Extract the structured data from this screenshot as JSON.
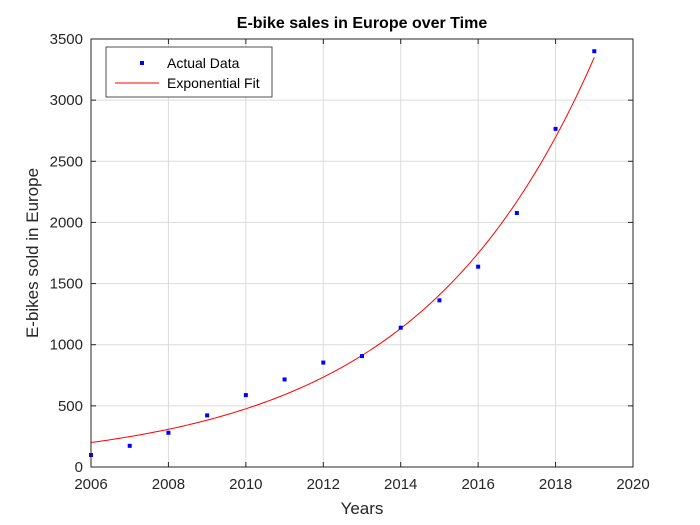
{
  "chart_data": {
    "type": "scatter",
    "title": "E-bike sales in Europe over Time",
    "xlabel": "Years",
    "ylabel": "E-bikes sold in Europe",
    "xlim": [
      2006,
      2020
    ],
    "ylim": [
      0,
      3500
    ],
    "xticks": [
      2006,
      2008,
      2010,
      2012,
      2014,
      2016,
      2018,
      2020
    ],
    "yticks": [
      0,
      500,
      1000,
      1500,
      2000,
      2500,
      3000,
      3500
    ],
    "grid": true,
    "legend_position": "top-left",
    "series": [
      {
        "name": "Actual Data",
        "type": "scatter",
        "color": "#0000ff",
        "x": [
          2006,
          2007,
          2008,
          2009,
          2010,
          2011,
          2012,
          2013,
          2014,
          2015,
          2016,
          2017,
          2018,
          2019
        ],
        "y": [
          98,
          173,
          280,
          422,
          588,
          716,
          854,
          907,
          1139,
          1363,
          1638,
          2077,
          2765,
          3400
        ]
      },
      {
        "name": "Exponential Fit",
        "type": "line",
        "color": "#ff0000",
        "model": "exponential",
        "x_range": [
          2006,
          2019
        ],
        "y_at_start": 200,
        "y_at_end": 3350
      }
    ]
  }
}
